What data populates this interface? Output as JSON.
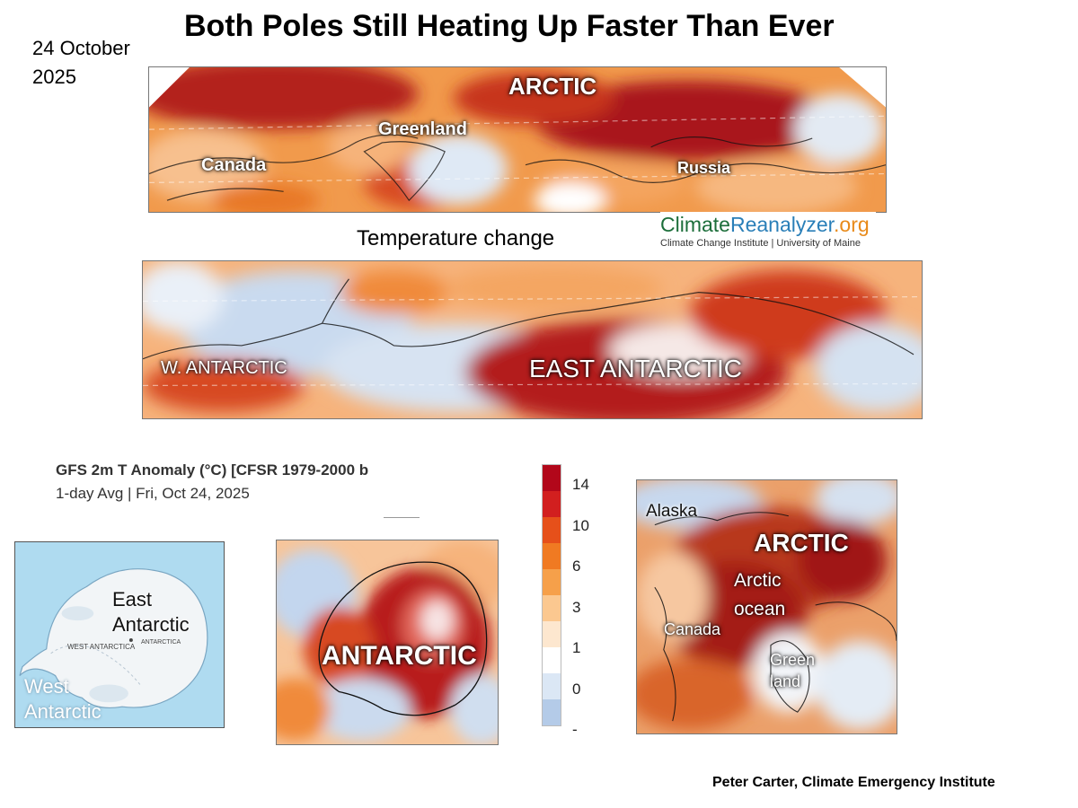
{
  "title": "Both Poles Still Heating Up Faster Than Ever",
  "date": "24 October 2025",
  "arctic_strip": {
    "labels": {
      "arctic": "ARCTIC",
      "greenland": "Greenland",
      "canada": "Canada",
      "russia": "Russia"
    }
  },
  "temperature_change_label": "Temperature change",
  "source_logo": {
    "part1": "Climate",
    "part2": "Reanalyzer",
    "part3": ".org",
    "subtitle": "Climate Change Institute | University of Maine"
  },
  "antarctic_strip": {
    "labels": {
      "west": "W. ANTARCTIC",
      "east": "EAST ANTARCTIC"
    }
  },
  "gfs_panel": {
    "title": "GFS 2m T Anomaly (°C) [CFSR 1979-2000 b",
    "subtitle": "1-day Avg | Fri, Oct 24, 2025"
  },
  "colorbar": {
    "ticks": [
      "14",
      "10",
      "6",
      "3",
      "1",
      "0",
      "-"
    ],
    "colors": [
      "#b2071a",
      "#d21f1f",
      "#e6501a",
      "#f07a22",
      "#f6a04a",
      "#fbc890",
      "#fde7cf",
      "#ffffff",
      "#dbe7f5",
      "#b4cbe8"
    ]
  },
  "antarctica_reference_map": {
    "labels": {
      "east": "East Antarctic",
      "west": "West Antarctic",
      "map_text": "WEST ANTARCTICA",
      "map_text2": "ANTARCTICA"
    }
  },
  "antarctic_anomaly_map": {
    "label": "ANTARCTIC"
  },
  "arctic_anomaly_map": {
    "labels": {
      "alaska": "Alaska",
      "arctic": "ARCTIC",
      "arctic_ocean": "Arctic ocean",
      "canada": "Canada",
      "greenland": "Green land"
    }
  },
  "credit": "Peter Carter, Climate Emergency Institute"
}
